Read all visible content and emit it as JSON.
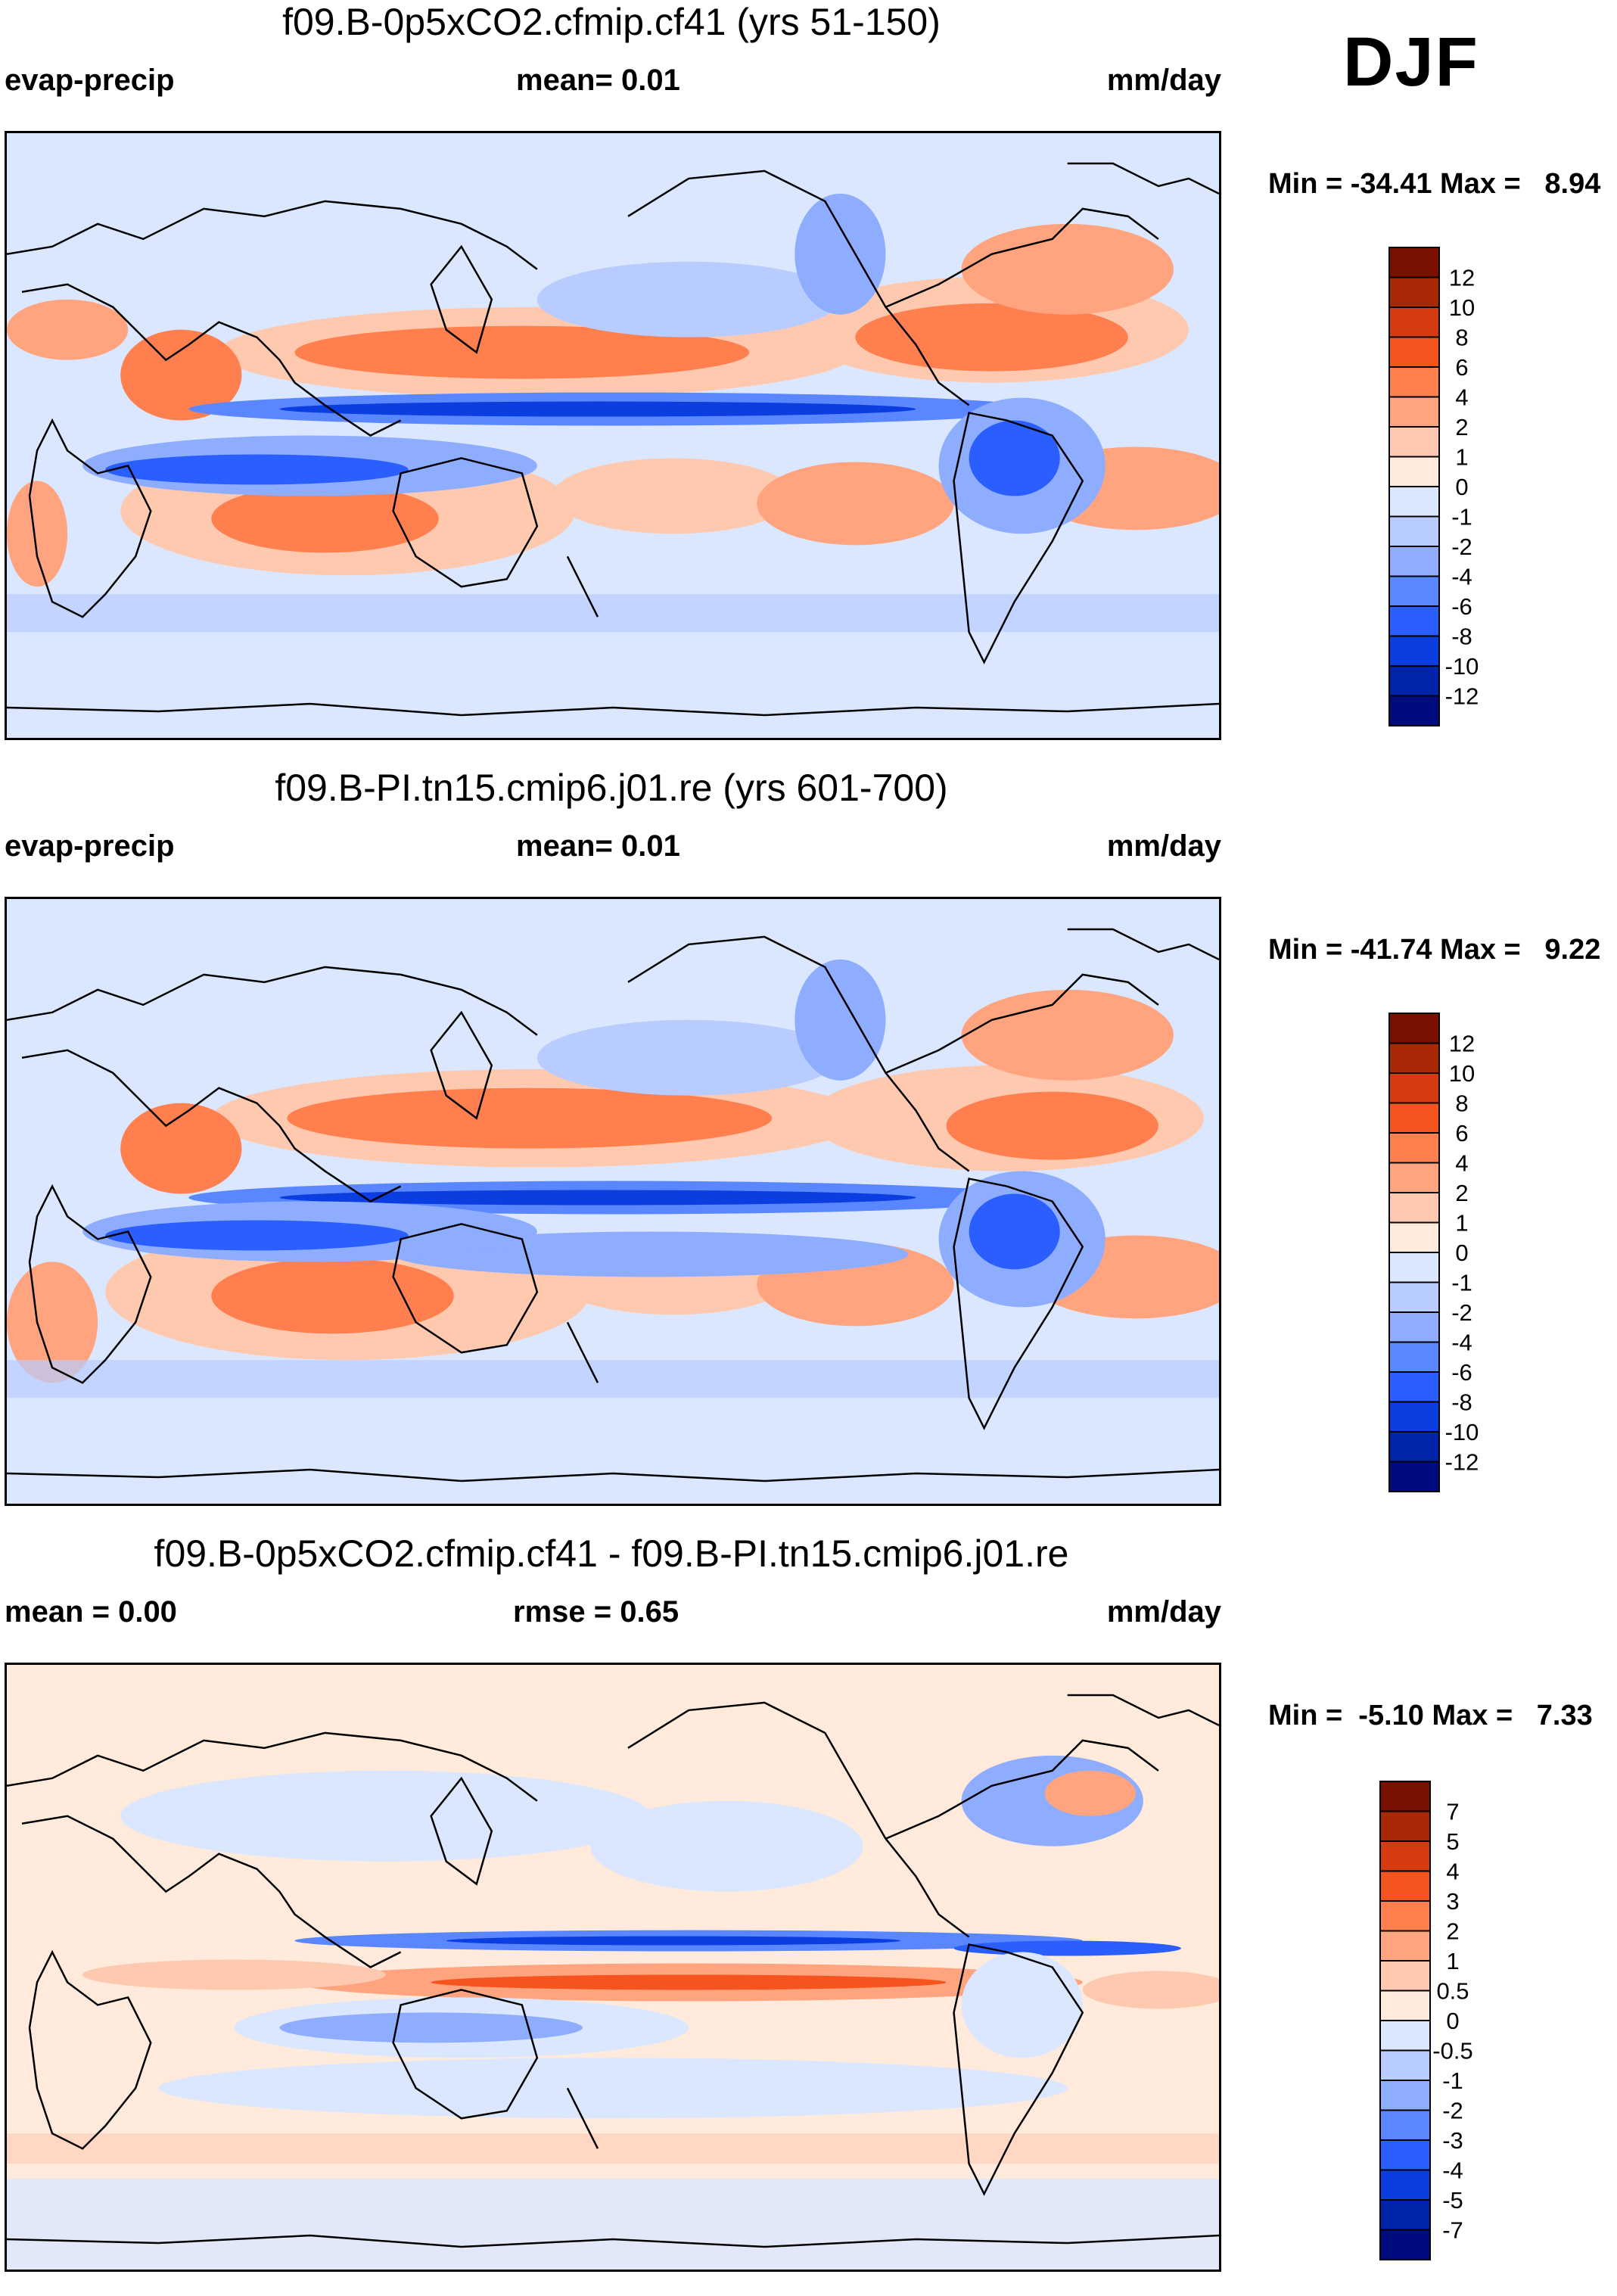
{
  "season": "DJF",
  "colors": {
    "diverging13": [
      "#f6f9ff",
      "#000c7d",
      "#0024a8",
      "#0a3ee0",
      "#2a5eff",
      "#5a86ff",
      "#8fadff",
      "#b8ccff",
      "#dbe7ff",
      "#ffeadb",
      "#ffc9b0",
      "#ffa47e",
      "#ff7f4e",
      "#f5541e",
      "#d63a10",
      "#a82705",
      "#7a1000"
    ],
    "scale13_fill": [
      "#000c7d",
      "#0024a8",
      "#0a3ee0",
      "#2a5eff",
      "#5a86ff",
      "#8fadff",
      "#b8ccff",
      "#dbe7ff",
      "#ffeadb",
      "#ffc9b0",
      "#ffa47e",
      "#ff7f4e",
      "#f5541e",
      "#d63a10",
      "#a82705",
      "#7a1000"
    ]
  },
  "panels": [
    {
      "title": "f09.B-0p5xCO2.cfmip.cf41 (yrs 51-150)",
      "left_label": "evap-precip",
      "mid_label": "mean=   0.01",
      "right_label": "mm/day",
      "minmax": "Min = -34.41 Max =   8.94",
      "colorbar": [
        "12",
        "10",
        "8",
        "6",
        "4",
        "2",
        "1",
        "0",
        "-1",
        "-2",
        "-4",
        "-6",
        "-8",
        "-10",
        "-12"
      ]
    },
    {
      "title": "f09.B-PI.tn15.cmip6.j01.re (yrs 601-700)",
      "left_label": "evap-precip",
      "mid_label": "mean=   0.01",
      "right_label": "mm/day",
      "minmax": "Min = -41.74 Max =   9.22",
      "colorbar": [
        "12",
        "10",
        "8",
        "6",
        "4",
        "2",
        "1",
        "0",
        "-1",
        "-2",
        "-4",
        "-6",
        "-8",
        "-10",
        "-12"
      ]
    },
    {
      "title": "f09.B-0p5xCO2.cfmip.cf41 - f09.B-PI.tn15.cmip6.j01.re",
      "left_label": "mean =    0.00",
      "mid_label": "rmse =    0.65",
      "right_label": "mm/day",
      "minmax": "Min =  -5.10 Max =   7.33",
      "colorbar": [
        "7",
        "5",
        "4",
        "3",
        "2",
        "1",
        "0.5",
        "0",
        "-0.5",
        "-1",
        "-2",
        "-3",
        "-4",
        "-5",
        "-7"
      ]
    }
  ]
}
